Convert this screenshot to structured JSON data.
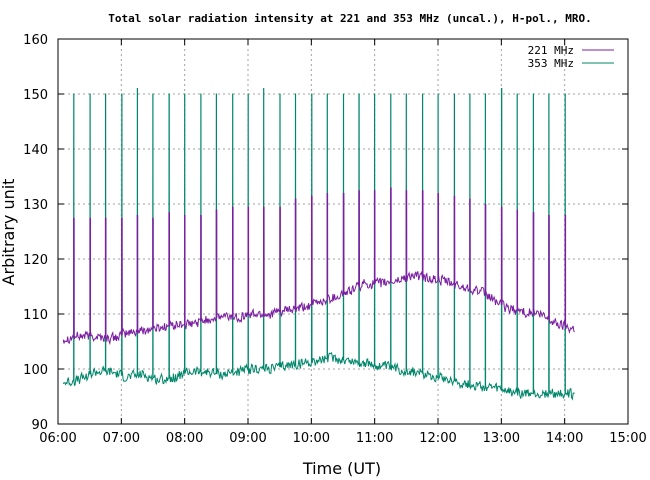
{
  "chart_data": {
    "type": "line",
    "title": "Total solar radiation intensity at 221 and 353 MHz (uncal.), H-pol., MRO.",
    "xlabel": "Time (UT)",
    "ylabel": "Arbitrary unit",
    "xlim": [
      "06:00",
      "15:00"
    ],
    "ylim": [
      90,
      160
    ],
    "x_ticks": [
      "06:00",
      "07:00",
      "08:00",
      "09:00",
      "10:00",
      "11:00",
      "12:00",
      "13:00",
      "14:00",
      "15:00"
    ],
    "y_ticks": [
      "90",
      "100",
      "110",
      "120",
      "130",
      "140",
      "150",
      "160"
    ],
    "grid": true,
    "legend_position": "top-right",
    "calibration_times": [
      "06:15",
      "06:30",
      "06:45",
      "07:00",
      "07:15",
      "07:30",
      "07:45",
      "08:00",
      "08:15",
      "08:30",
      "08:45",
      "09:00",
      "09:15",
      "09:30",
      "09:45",
      "10:00",
      "10:15",
      "10:30",
      "10:45",
      "11:00",
      "11:15",
      "11:30",
      "11:45",
      "12:00",
      "12:15",
      "12:30",
      "12:45",
      "13:00",
      "13:15",
      "13:30",
      "13:45",
      "14:00"
    ],
    "series": [
      {
        "name": "221 MHz",
        "color": "#7b1fa2",
        "x": [
          "06:05",
          "06:20",
          "06:35",
          "06:50",
          "07:05",
          "07:20",
          "07:35",
          "07:50",
          "08:05",
          "08:20",
          "08:35",
          "08:50",
          "09:05",
          "09:20",
          "09:35",
          "09:50",
          "10:05",
          "10:20",
          "10:35",
          "10:50",
          "11:05",
          "11:20",
          "11:35",
          "11:50",
          "12:05",
          "12:20",
          "12:35",
          "12:50",
          "13:05",
          "13:20",
          "13:35",
          "13:50",
          "14:05",
          "14:10"
        ],
        "values": [
          105.5,
          106,
          106,
          105.5,
          106.5,
          107,
          107.5,
          108,
          108,
          109,
          109.5,
          109.5,
          110,
          110,
          110.5,
          111,
          112,
          113,
          114,
          115.5,
          115.5,
          116,
          117,
          116.5,
          116,
          115,
          114.5,
          113,
          111,
          110.5,
          110,
          108.5,
          107.5,
          107.5
        ],
        "cal_peaks": [
          127.5,
          127.5,
          127.5,
          127.5,
          128,
          127.5,
          128.5,
          128,
          128,
          129,
          129.5,
          129.5,
          129.5,
          129.5,
          131,
          131.5,
          132,
          132,
          132.5,
          132.5,
          133,
          132.5,
          132.5,
          132,
          131.5,
          131,
          130,
          129.5,
          129,
          128.5,
          128,
          128
        ],
        "cal_bases": [
          124,
          124,
          124,
          124,
          124.5,
          124,
          125.5,
          124.5,
          124.5,
          124.5,
          125,
          125,
          125,
          125,
          125,
          125.5,
          125.5,
          125.5,
          126,
          126,
          126,
          125.5,
          125,
          125,
          124.5,
          124.5,
          124.5,
          124,
          124,
          124,
          124,
          124
        ]
      },
      {
        "name": "353 MHz",
        "color": "#00876a",
        "x": [
          "06:05",
          "06:20",
          "06:35",
          "06:50",
          "07:05",
          "07:20",
          "07:35",
          "07:50",
          "08:05",
          "08:20",
          "08:35",
          "08:50",
          "09:05",
          "09:20",
          "09:35",
          "09:50",
          "10:05",
          "10:20",
          "10:35",
          "10:50",
          "11:05",
          "11:20",
          "11:35",
          "11:50",
          "12:05",
          "12:20",
          "12:35",
          "12:50",
          "13:05",
          "13:20",
          "13:35",
          "13:50",
          "14:05",
          "14:10"
        ],
        "values": [
          97.5,
          98,
          99.5,
          99.5,
          98.5,
          99,
          98,
          98.5,
          99.5,
          99.5,
          99,
          99.5,
          100,
          100,
          100.5,
          101,
          101.5,
          102,
          101.5,
          101,
          100.5,
          100,
          99.5,
          99,
          98.5,
          97.5,
          97,
          96.5,
          96,
          95.5,
          95.5,
          95.5,
          95.5,
          95.5
        ],
        "cal_peaks": [
          150,
          150,
          150,
          150,
          151,
          150,
          150,
          150,
          150,
          150,
          150,
          150,
          151,
          150,
          150,
          150,
          150,
          150,
          150,
          150,
          150,
          150,
          150,
          150,
          150,
          150,
          150,
          151,
          150,
          150,
          150,
          150
        ]
      }
    ]
  }
}
